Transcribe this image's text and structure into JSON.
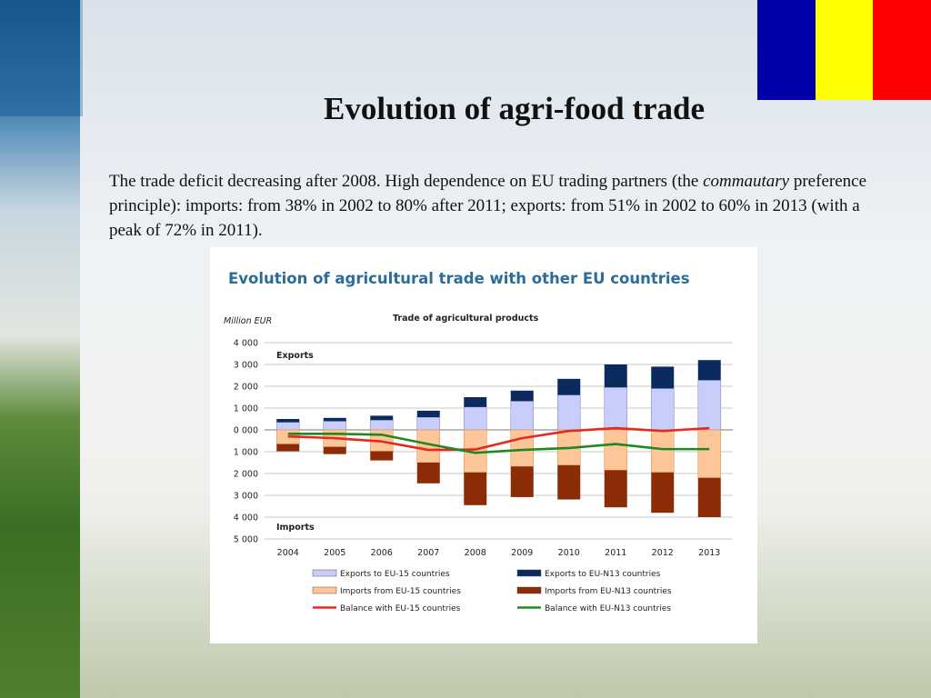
{
  "slide": {
    "title": "Evolution of agri-food trade",
    "text_lead": "The trade deficit decreasing after 2008. High dependence on EU trading partners (the ",
    "text_italic": "commautary",
    "text_tail": " preference principle): imports: from 38% in 2002 to 80% after 2011; exports: from 51% in 2002 to 60% in 2013 (with a peak of 72% in 2011)."
  },
  "flag_colors": [
    "#0000a8",
    "#ffff00",
    "#ff0000"
  ],
  "chart_data": {
    "type": "bar",
    "heading": "Evolution of agricultural trade with other EU countries",
    "title": "Trade of agricultural products",
    "unit_label": "Million EUR",
    "exports_label": "Exports",
    "imports_label": "Imports",
    "categories": [
      "2004",
      "2005",
      "2006",
      "2007",
      "2008",
      "2009",
      "2010",
      "2011",
      "2012",
      "2013"
    ],
    "y_tick_values": [
      4000,
      3000,
      2000,
      1000,
      0,
      -1000,
      -2000,
      -3000,
      -4000,
      -5000
    ],
    "y_tick_labels": [
      "4 000",
      "3 000",
      "2 000",
      "1 000",
      "0 000",
      "1 000",
      "2 000",
      "3 000",
      "4 000",
      "5 000"
    ],
    "ylim": [
      -5000,
      4000
    ],
    "grid": true,
    "legend_position": "bottom",
    "stacked": true,
    "series": [
      {
        "name": "Exports to EU-15 countries",
        "kind": "bar",
        "color": "#c9cdfa",
        "values": [
          350,
          400,
          450,
          580,
          1050,
          1320,
          1600,
          1950,
          1900,
          2280
        ]
      },
      {
        "name": "Exports to EU-N13 countries",
        "kind": "bar",
        "color": "#0b2a5e",
        "values": [
          150,
          150,
          200,
          300,
          450,
          480,
          740,
          1050,
          1000,
          920
        ]
      },
      {
        "name": "Imports from EU-15 countries",
        "kind": "bar",
        "color": "#fcc699",
        "values": [
          -650,
          -780,
          -980,
          -1500,
          -1950,
          -1680,
          -1620,
          -1850,
          -1950,
          -2200
        ]
      },
      {
        "name": "Imports from EU-N13 countries",
        "kind": "bar",
        "color": "#8b2c07",
        "values": [
          -330,
          -330,
          -420,
          -950,
          -1500,
          -1400,
          -1570,
          -1700,
          -1850,
          -1800
        ]
      },
      {
        "name": "Balance with EU-15 countries",
        "kind": "line",
        "color": "#e8281e",
        "values": [
          -300,
          -380,
          -530,
          -920,
          -900,
          -380,
          -50,
          80,
          -50,
          80
        ]
      },
      {
        "name": "Balance with EU-N13 countries",
        "kind": "line",
        "color": "#1e8a1e",
        "values": [
          -180,
          -180,
          -220,
          -650,
          -1050,
          -920,
          -830,
          -650,
          -880,
          -880
        ]
      }
    ]
  }
}
